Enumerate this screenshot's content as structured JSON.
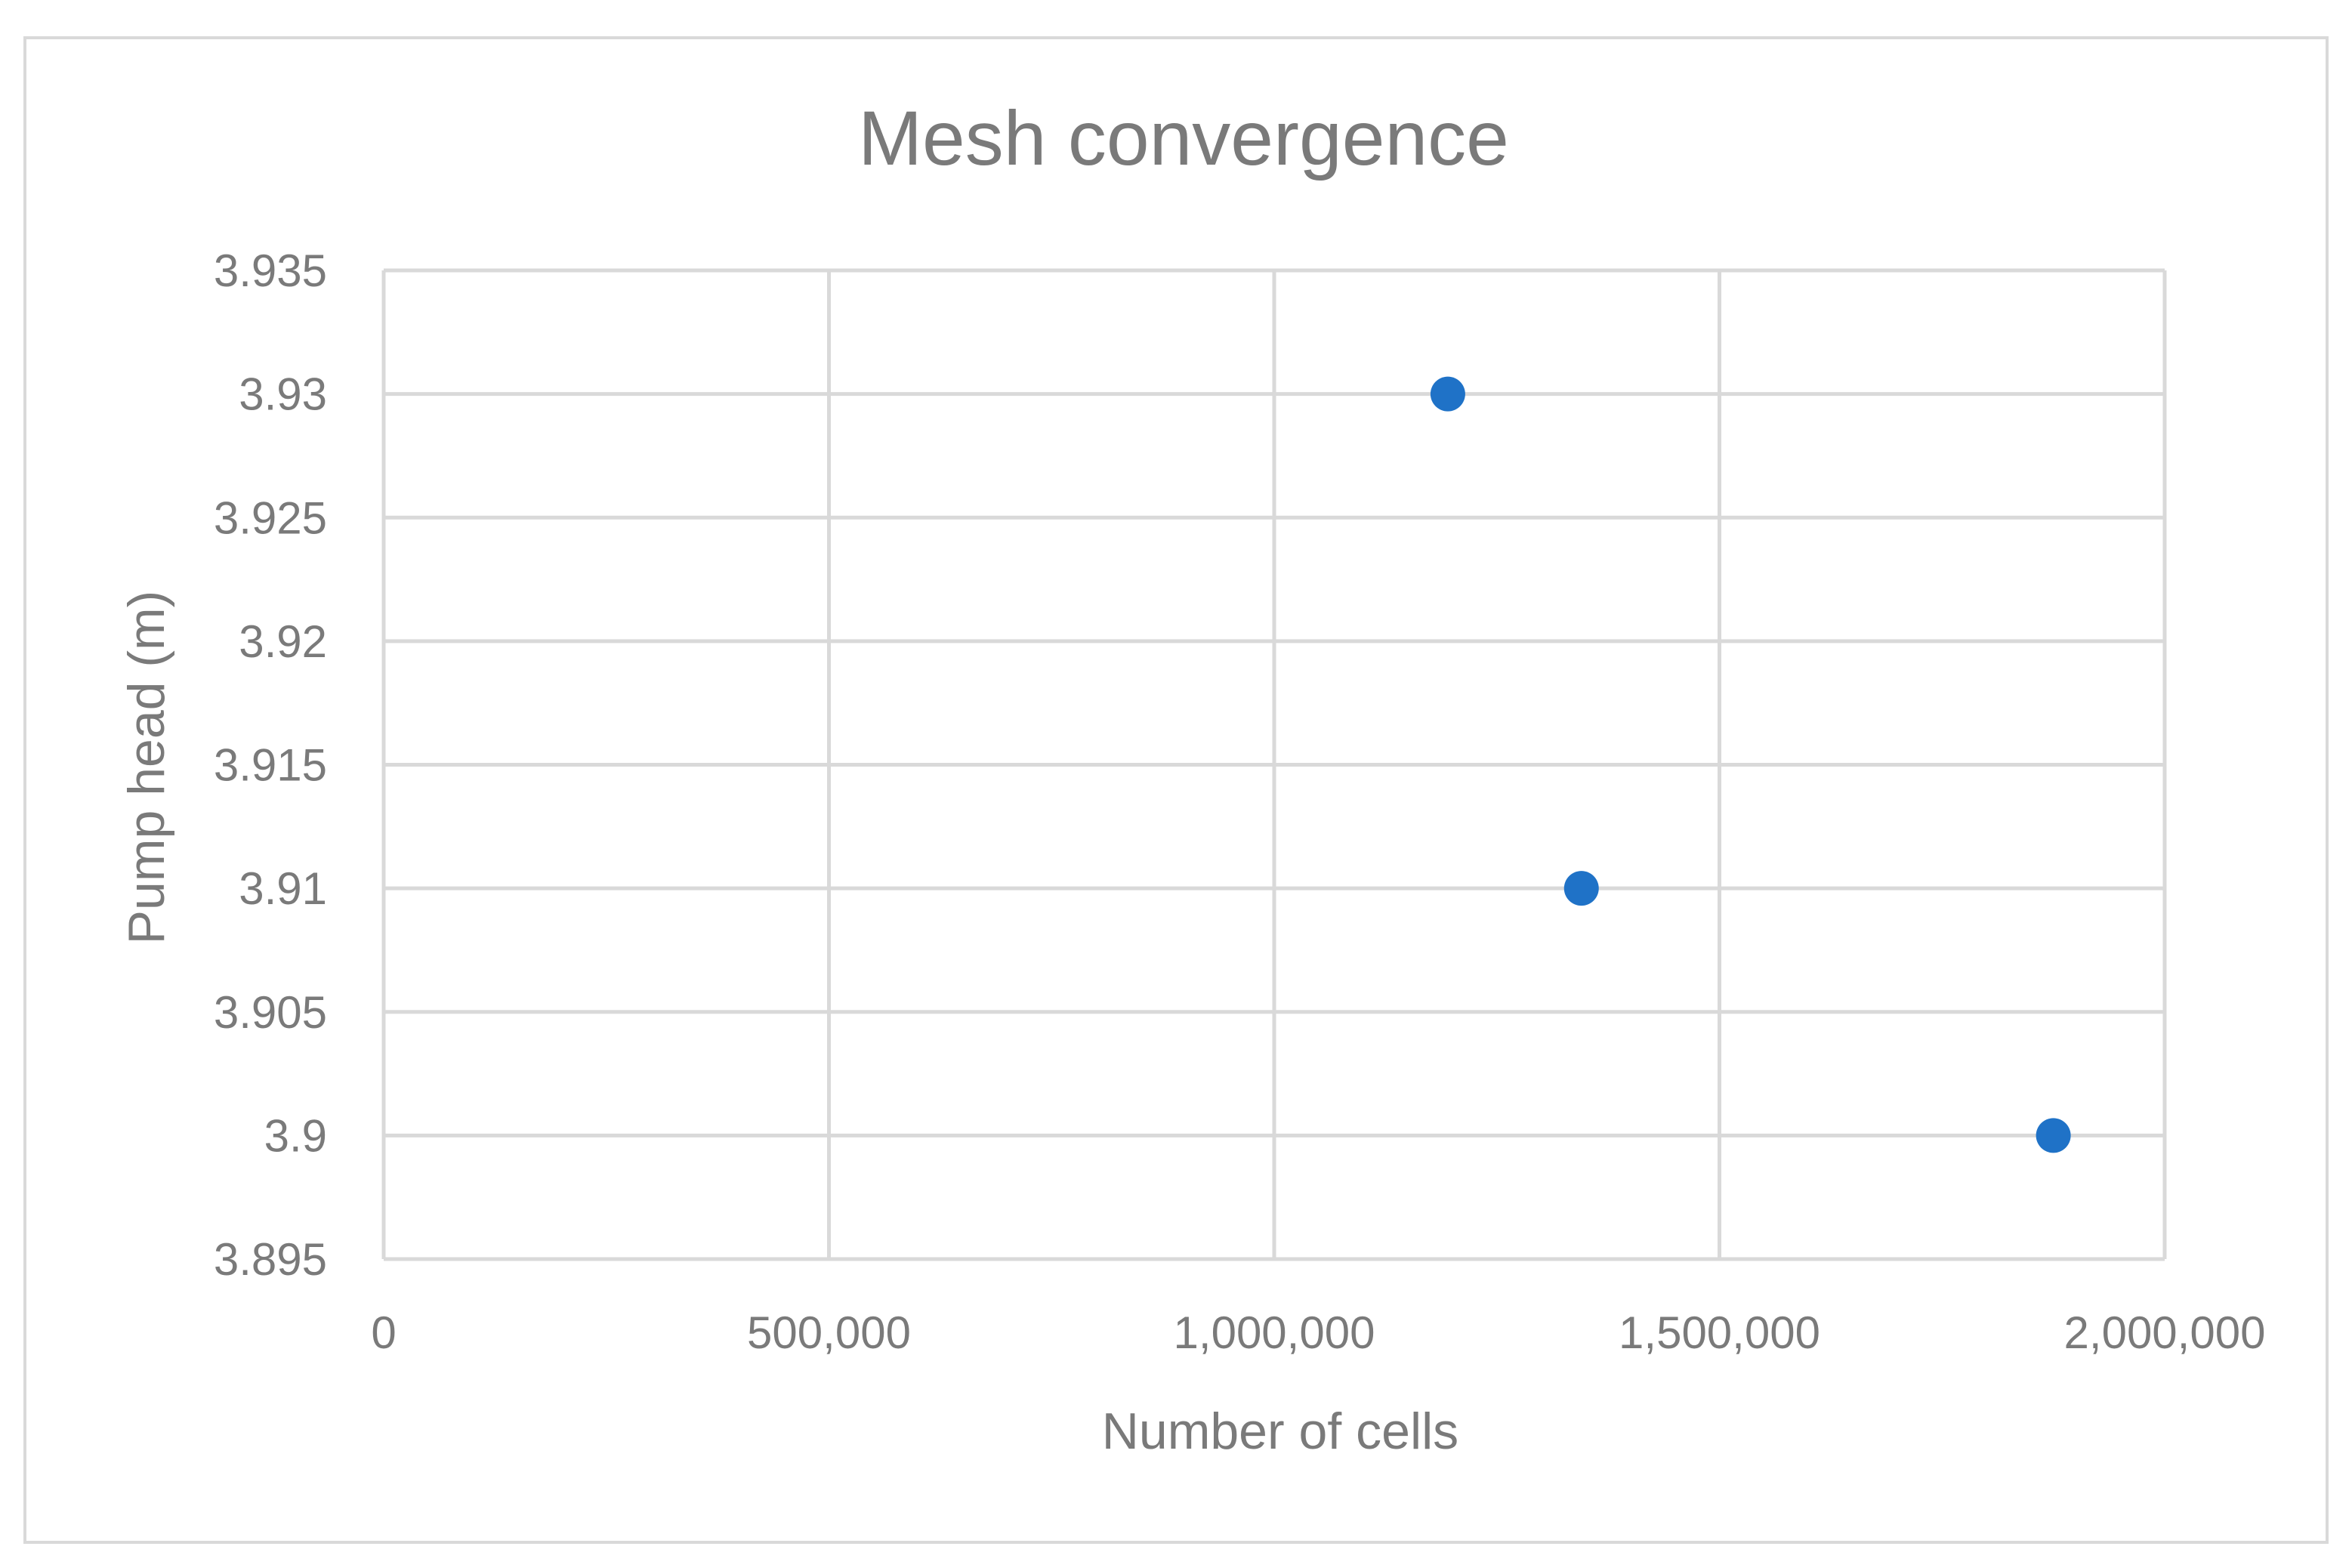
{
  "chart_data": {
    "type": "scatter",
    "title": "Mesh convergence",
    "xlabel": "Number of cells",
    "ylabel": "Pump head (m)",
    "xlim": [
      0,
      2000000
    ],
    "ylim": [
      3.895,
      3.935
    ],
    "x_ticks": [
      0,
      500000,
      1000000,
      1500000,
      2000000
    ],
    "x_tick_labels": [
      "0",
      "500,000",
      "1,000,000",
      "1,500,000",
      "2,000,000"
    ],
    "y_ticks": [
      3.895,
      3.9,
      3.905,
      3.91,
      3.915,
      3.92,
      3.925,
      3.93,
      3.935
    ],
    "y_tick_labels": [
      "3.895",
      "3.9",
      "3.905",
      "3.91",
      "3.915",
      "3.92",
      "3.925",
      "3.93",
      "3.935"
    ],
    "grid": true,
    "legend": "none",
    "series": [
      {
        "x": [
          1195000,
          1345000,
          1875000
        ],
        "y": [
          3.93,
          3.91,
          3.9
        ],
        "color": "#1f72c7"
      }
    ]
  }
}
